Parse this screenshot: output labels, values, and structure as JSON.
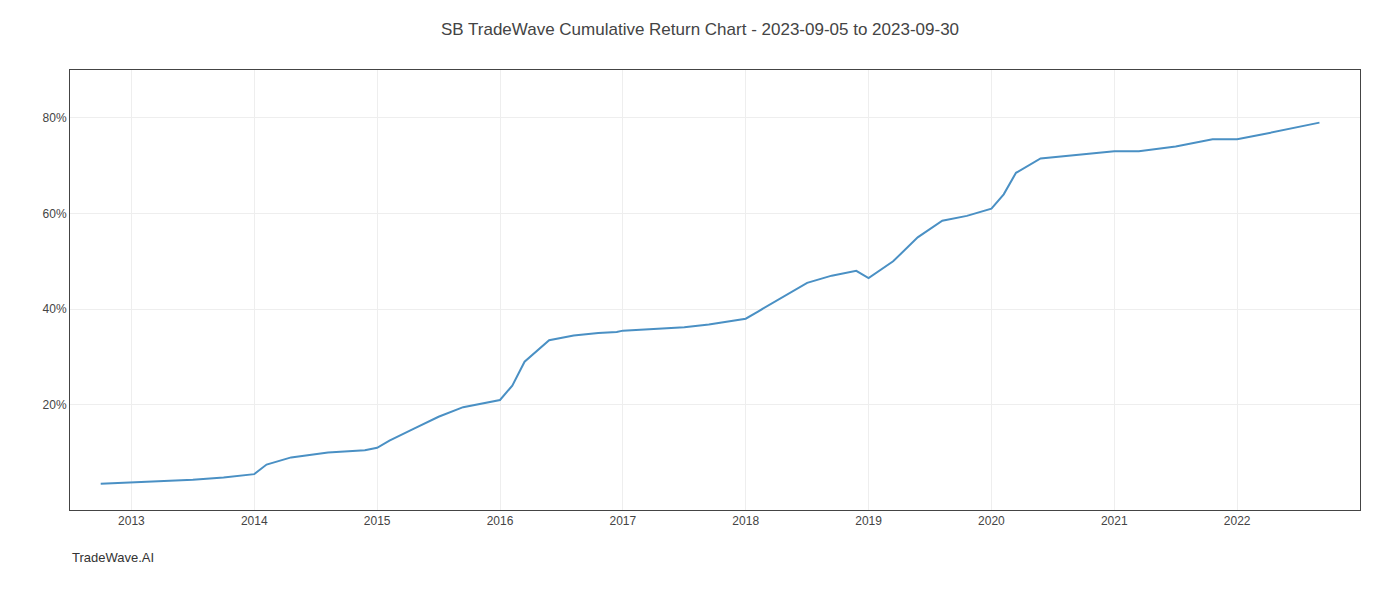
{
  "chart_data": {
    "type": "line",
    "title": "SB TradeWave Cumulative Return Chart - 2023-09-05 to 2023-09-30",
    "annotations": [
      "TradeWave.AI"
    ],
    "x": [
      2012.75,
      2013.0,
      2013.2,
      2013.5,
      2013.75,
      2014.0,
      2014.1,
      2014.3,
      2014.6,
      2014.9,
      2015.0,
      2015.1,
      2015.3,
      2015.5,
      2015.7,
      2015.9,
      2016.0,
      2016.1,
      2016.2,
      2016.4,
      2016.6,
      2016.8,
      2016.95,
      2017.0,
      2017.2,
      2017.5,
      2017.7,
      2017.9,
      2018.0,
      2018.1,
      2018.2,
      2018.3,
      2018.5,
      2018.7,
      2018.9,
      2019.0,
      2019.2,
      2019.4,
      2019.6,
      2019.8,
      2020.0,
      2020.1,
      2020.2,
      2020.4,
      2020.6,
      2020.8,
      2021.0,
      2021.2,
      2021.5,
      2021.8,
      2022.0,
      2022.2,
      2022.5,
      2022.67
    ],
    "values": [
      3.5,
      3.8,
      4.0,
      4.3,
      4.8,
      5.5,
      7.5,
      9.0,
      10.0,
      10.5,
      11.0,
      12.5,
      15.0,
      17.5,
      19.5,
      20.5,
      21.0,
      24.0,
      29.0,
      33.5,
      34.5,
      35.0,
      35.2,
      35.5,
      35.8,
      36.2,
      36.8,
      37.5,
      38.0,
      39.5,
      41.0,
      42.5,
      45.5,
      47.0,
      48.0,
      46.5,
      50.0,
      55.0,
      58.5,
      59.5,
      61.0,
      64.0,
      68.5,
      71.5,
      72.0,
      72.5,
      73.0,
      73.0,
      74.0,
      75.5,
      75.5,
      76.5,
      78.0,
      79.0
    ],
    "color": "#4a90c4",
    "xlim": [
      2012.5,
      2023.0
    ],
    "xticks": [
      2013,
      2014,
      2015,
      2016,
      2017,
      2018,
      2019,
      2020,
      2021,
      2022
    ],
    "ylim": [
      -2,
      90
    ],
    "yticks": [
      {
        "value": 20,
        "label": "20%"
      },
      {
        "value": 40,
        "label": "40%"
      },
      {
        "value": 60,
        "label": "60%"
      },
      {
        "value": 80,
        "label": "80%"
      }
    ],
    "grid": true
  }
}
